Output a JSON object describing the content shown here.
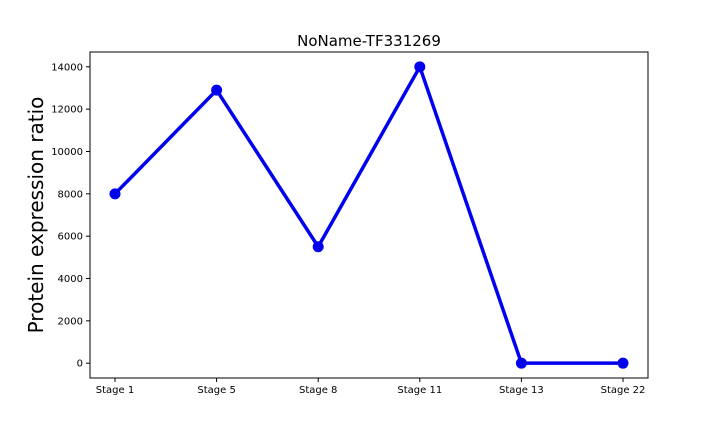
{
  "chart_data": {
    "type": "line",
    "title": "NoName-TF331269",
    "xlabel": "",
    "ylabel": "Protein expression ratio",
    "categories": [
      "Stage 1",
      "Stage 5",
      "Stage 8",
      "Stage 11",
      "Stage 13",
      "Stage 22"
    ],
    "series": [
      {
        "values": [
          8000,
          12900,
          5500,
          14000,
          0,
          0
        ]
      }
    ],
    "ylim": [
      -700,
      14700
    ],
    "yticks": [
      0,
      2000,
      4000,
      6000,
      8000,
      10000,
      12000,
      14000
    ],
    "ytick_labels": [
      "0",
      "2000",
      "4000",
      "6000",
      "8000",
      "10000",
      "12000",
      "14000"
    ],
    "grid": false,
    "legend": "none",
    "colors": {
      "line": "#0000ee",
      "marker": "#0000ee",
      "axes": "#000000"
    }
  }
}
